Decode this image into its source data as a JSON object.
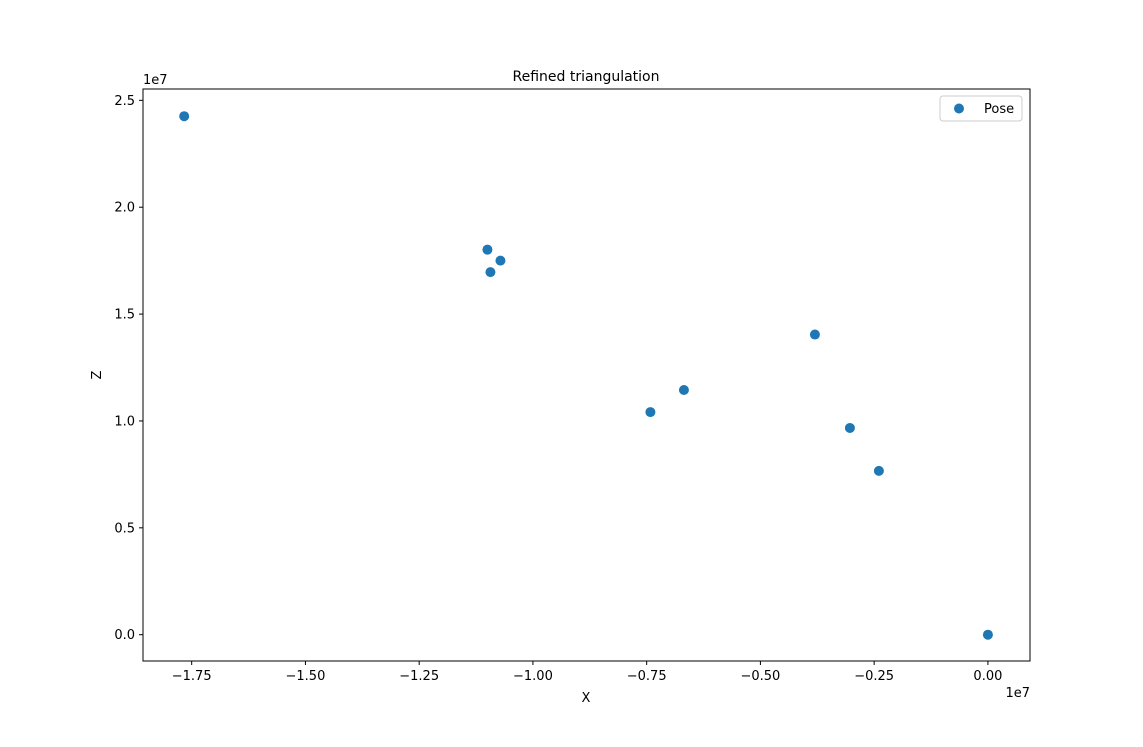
{
  "chart_data": {
    "type": "scatter",
    "title": "Refined triangulation",
    "xlabel": "X",
    "ylabel": "Z",
    "x_offset_label": "1e7",
    "y_offset_label": "1e7",
    "xlim": [
      -1.857,
      0.0925
    ],
    "ylim": [
      -0.123,
      2.553
    ],
    "x_ticks": [
      {
        "value": -1.75,
        "label": "−1.75"
      },
      {
        "value": -1.5,
        "label": "−1.50"
      },
      {
        "value": -1.25,
        "label": "−1.25"
      },
      {
        "value": -1.0,
        "label": "−1.00"
      },
      {
        "value": -0.75,
        "label": "−0.75"
      },
      {
        "value": -0.5,
        "label": "−0.50"
      },
      {
        "value": -0.25,
        "label": "−0.25"
      },
      {
        "value": 0.0,
        "label": "0.00"
      }
    ],
    "y_ticks": [
      {
        "value": 0.0,
        "label": "0.0"
      },
      {
        "value": 0.5,
        "label": "0.5"
      },
      {
        "value": 1.0,
        "label": "1.0"
      },
      {
        "value": 1.5,
        "label": "1.5"
      },
      {
        "value": 2.0,
        "label": "2.0"
      },
      {
        "value": 2.5,
        "label": "2.5"
      }
    ],
    "grid": false,
    "legend_position": "top-right",
    "series": [
      {
        "name": "Pose",
        "color": "#1f77b4",
        "marker": "circle",
        "points": [
          {
            "x": -1.7665,
            "y": 2.4257
          },
          {
            "x": -1.1,
            "y": 1.8014
          },
          {
            "x": -1.0714,
            "y": 1.75
          },
          {
            "x": -1.0934,
            "y": 1.6963
          },
          {
            "x": -0.7418,
            "y": 1.0416
          },
          {
            "x": -0.6681,
            "y": 1.1449
          },
          {
            "x": -0.3802,
            "y": 1.4042
          },
          {
            "x": -0.3033,
            "y": 0.9673
          },
          {
            "x": -0.2396,
            "y": 0.7664
          },
          {
            "x": 0.0,
            "y": 0.0
          }
        ]
      }
    ]
  }
}
